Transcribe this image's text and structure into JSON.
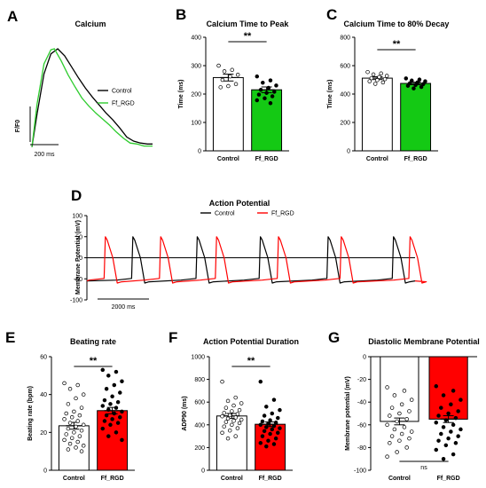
{
  "chart_data": [
    {
      "panel": "A",
      "type": "line",
      "title": "Calcium",
      "ylabel": "F/F0",
      "scale_bar": "200 ms",
      "series": [
        {
          "name": "Control",
          "color": "#000000",
          "x": [
            0,
            30,
            70,
            110,
            150,
            190,
            230,
            270,
            310,
            350,
            390,
            430,
            470,
            510,
            550,
            590,
            630,
            670,
            700
          ],
          "y": [
            0.02,
            0.35,
            0.75,
            0.95,
            1.0,
            0.93,
            0.82,
            0.71,
            0.61,
            0.52,
            0.44,
            0.36,
            0.29,
            0.21,
            0.12,
            0.08,
            0.06,
            0.05,
            0.05
          ]
        },
        {
          "name": "Ff_RGD",
          "color": "#2ecc2e",
          "x": [
            0,
            30,
            70,
            110,
            130,
            170,
            210,
            250,
            290,
            330,
            370,
            410,
            450,
            490,
            530,
            570,
            610,
            650,
            700
          ],
          "y": [
            0.02,
            0.45,
            0.85,
            0.99,
            1.0,
            0.88,
            0.74,
            0.62,
            0.51,
            0.43,
            0.36,
            0.3,
            0.24,
            0.17,
            0.11,
            0.06,
            0.05,
            0.03,
            0.03
          ]
        }
      ]
    },
    {
      "panel": "B",
      "type": "bar",
      "title": "Calcium Time to Peak",
      "ylabel": "Time (ms)",
      "ylim": [
        0,
        400
      ],
      "yticks": [
        0,
        100,
        200,
        300,
        400
      ],
      "categories": [
        "Control",
        "Ff_RGD"
      ],
      "values": [
        258,
        215
      ],
      "errors": [
        12,
        10
      ],
      "colors": [
        "#ffffff",
        "#14c914"
      ],
      "significance": "**",
      "points": [
        [
          300,
          285,
          280,
          268,
          262,
          250,
          235,
          228,
          224
        ],
        [
          262,
          248,
          240,
          230,
          222,
          215,
          208,
          204,
          198,
          192,
          185,
          178,
          168
        ]
      ]
    },
    {
      "panel": "C",
      "type": "bar",
      "title": "Calcium Time to 80% Decay",
      "ylabel": "Time (ms)",
      "ylim": [
        0,
        800
      ],
      "yticks": [
        0,
        200,
        400,
        600,
        800
      ],
      "categories": [
        "Control",
        "Ff_RGD"
      ],
      "values": [
        512,
        475
      ],
      "errors": [
        10,
        9
      ],
      "colors": [
        "#ffffff",
        "#14c914"
      ],
      "significance": "**",
      "points": [
        [
          555,
          545,
          538,
          528,
          520,
          512,
          505,
          498,
          490,
          482,
          472
        ],
        [
          510,
          502,
          495,
          490,
          482,
          476,
          470,
          464,
          458,
          450,
          440
        ]
      ]
    },
    {
      "panel": "D",
      "type": "line",
      "title": "Action Potential",
      "ylabel": "Membrane Potential (mV)",
      "ylim": [
        -100,
        100
      ],
      "yticks": [
        -100,
        -50,
        0,
        50,
        100
      ],
      "scale_bar": "2000 ms",
      "series": [
        {
          "name": "Control",
          "color": "#000000",
          "beats": [
            1470,
            3530,
            5550,
            7720,
            9810
          ],
          "peak": 50,
          "rest": -55
        },
        {
          "name": "Ff_RGD",
          "color": "#ff0000",
          "beats": [
            590,
            2360,
            4150,
            6130,
            8140,
            10340
          ],
          "peak": 50,
          "rest": -55
        }
      ]
    },
    {
      "panel": "E",
      "type": "bar",
      "title": "Beating rate",
      "ylabel": "Beating rate (bpm)",
      "ylim": [
        0,
        60
      ],
      "yticks": [
        0,
        20,
        40,
        60
      ],
      "categories": [
        "Control",
        "Ff_RGD"
      ],
      "values": [
        23.5,
        31.5
      ],
      "errors": [
        1.8,
        1.7
      ],
      "colors": [
        "#ffffff",
        "#ff0000"
      ],
      "significance": "**",
      "points": [
        [
          46,
          45,
          43,
          40,
          38,
          35,
          33,
          31,
          30,
          29,
          28,
          27,
          26,
          25,
          24,
          23,
          22,
          21,
          20,
          19,
          18,
          17,
          16,
          15,
          14,
          13,
          12,
          11,
          10
        ],
        [
          53,
          52,
          50,
          47,
          45,
          43,
          41,
          39,
          37,
          36,
          35,
          34,
          33,
          32,
          31,
          30,
          29,
          28,
          27,
          26,
          25,
          24,
          22,
          20,
          18,
          16
        ]
      ]
    },
    {
      "panel": "F",
      "type": "bar",
      "title": "Action Potential Duration",
      "ylabel": "ADP90 (ms)",
      "ylim": [
        0,
        1000
      ],
      "yticks": [
        0,
        200,
        400,
        600,
        800,
        1000
      ],
      "categories": [
        "Control",
        "Ff_RGD"
      ],
      "values": [
        478,
        405
      ],
      "errors": [
        22,
        20
      ],
      "colors": [
        "#ffffff",
        "#ff0000"
      ],
      "significance": "**",
      "points": [
        [
          780,
          640,
          610,
          590,
          570,
          550,
          530,
          520,
          505,
          495,
          485,
          475,
          465,
          455,
          445,
          435,
          425,
          415,
          400,
          385,
          370,
          350,
          330,
          300,
          280
        ],
        [
          780,
          620,
          560,
          530,
          500,
          480,
          460,
          440,
          430,
          420,
          410,
          400,
          390,
          380,
          370,
          360,
          345,
          330,
          320,
          300,
          280,
          260,
          240,
          230,
          210
        ]
      ]
    },
    {
      "panel": "G",
      "type": "bar",
      "title": "Diastolic Membrane Potential",
      "ylabel": "Membrane potential (mV)",
      "ylim": [
        -100,
        0
      ],
      "yticks": [
        -100,
        -80,
        -60,
        -40,
        -20,
        0
      ],
      "categories": [
        "Control",
        "Ff_RGD"
      ],
      "values": [
        -57,
        -55
      ],
      "errors": [
        3,
        3
      ],
      "colors": [
        "#ffffff",
        "#ff0000"
      ],
      "significance": "ns",
      "points": [
        [
          -27,
          -30,
          -34,
          -38,
          -42,
          -45,
          -48,
          -50,
          -52,
          -55,
          -57,
          -60,
          -62,
          -64,
          -66,
          -68,
          -70,
          -72,
          -74,
          -76,
          -80,
          -84,
          -88
        ],
        [
          -26,
          -30,
          -34,
          -38,
          -42,
          -45,
          -48,
          -50,
          -52,
          -54,
          -56,
          -58,
          -60,
          -62,
          -64,
          -66,
          -68,
          -70,
          -72,
          -74,
          -76,
          -78,
          -82,
          -86,
          -90
        ]
      ]
    }
  ]
}
